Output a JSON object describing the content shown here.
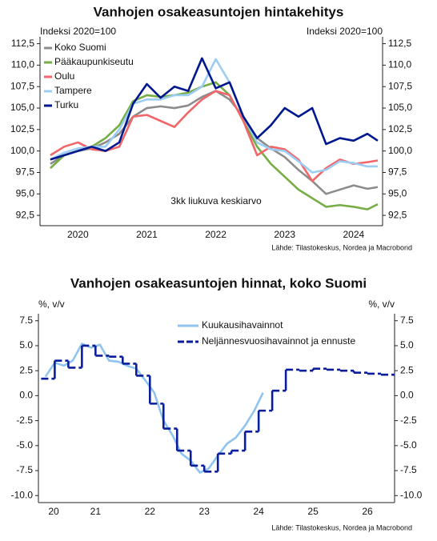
{
  "chart_data": [
    {
      "type": "line",
      "title": "Vanhojen osakeasuntojen hintakehitys",
      "y_label": "Indeksi 2020=100",
      "y2_label": "Indeksi 2020=100",
      "annotation": "3kk liukuva keskiarvo",
      "source": "Lähde: Tilastokeskus, Nordea ja Macrobond",
      "legend": "upper left",
      "x": [
        2020.1,
        2020.3,
        2020.5,
        2020.7,
        2020.9,
        2021.1,
        2021.3,
        2021.5,
        2021.7,
        2021.9,
        2022.1,
        2022.3,
        2022.5,
        2022.7,
        2022.9,
        2023.1,
        2023.3,
        2023.5,
        2023.7,
        2023.9,
        2024.1,
        2024.3,
        2024.5,
        2024.7,
        2024.85
      ],
      "xlim": [
        2019.95,
        2024.92
      ],
      "xticks": [
        {
          "value": 2020.5,
          "label": "2020"
        },
        {
          "value": 2021.5,
          "label": "2021"
        },
        {
          "value": 2022.5,
          "label": "2022"
        },
        {
          "value": 2023.5,
          "label": "2023"
        },
        {
          "value": 2024.5,
          "label": "2024"
        }
      ],
      "ylim": [
        91.3,
        113.3
      ],
      "yticks": [
        {
          "value": 92.5,
          "label": "92,5"
        },
        {
          "value": 95,
          "label": "95,0"
        },
        {
          "value": 97.5,
          "label": "97,5"
        },
        {
          "value": 100,
          "label": "100,0"
        },
        {
          "value": 102.5,
          "label": "102,5"
        },
        {
          "value": 105,
          "label": "105,0"
        },
        {
          "value": 107.5,
          "label": "107,5"
        },
        {
          "value": 110,
          "label": "110,0"
        },
        {
          "value": 112.5,
          "label": "112,5"
        }
      ],
      "series": [
        {
          "name": "Koko Suomi",
          "color": "#8c8c8c",
          "values": [
            98.5,
            99.5,
            100,
            100.3,
            101,
            102,
            104,
            105,
            105.2,
            105,
            105.3,
            106.3,
            107,
            106,
            104,
            101.5,
            100.3,
            99.3,
            97.8,
            96.5,
            95,
            95.5,
            96,
            95.6,
            95.8
          ]
        },
        {
          "name": "Pääkaupunkiseutu",
          "color": "#76ad45",
          "values": [
            98,
            99.5,
            100,
            100.5,
            101.5,
            103,
            105.8,
            106.5,
            106.3,
            106.5,
            106.8,
            107.5,
            108,
            106.5,
            103.5,
            100.5,
            98.5,
            97,
            95.5,
            94.5,
            93.5,
            93.7,
            93.5,
            93.2,
            93.8
          ]
        },
        {
          "name": "Oulu",
          "color": "#f2666a",
          "values": [
            99.5,
            100.5,
            101,
            100.2,
            100,
            100.5,
            104,
            104.2,
            103.5,
            102.8,
            104.5,
            106,
            107,
            106.5,
            103.5,
            99.5,
            100.5,
            100.2,
            99,
            96.5,
            98,
            99,
            98.5,
            98.7,
            98.9
          ]
        },
        {
          "name": "Tampere",
          "color": "#9ccdf4",
          "values": [
            99,
            99.8,
            100.3,
            100.5,
            100.5,
            102.5,
            105.5,
            106,
            106,
            106.5,
            106.5,
            107.5,
            110.7,
            108,
            104,
            101,
            100.2,
            100,
            98.8,
            97.5,
            97.8,
            98.8,
            98.6,
            98.2,
            98.2
          ]
        },
        {
          "name": "Turku",
          "color": "#00188f",
          "values": [
            99,
            99.5,
            100,
            100.5,
            100,
            101,
            105.5,
            107.8,
            106.2,
            107.5,
            107,
            110.8,
            107.3,
            108,
            104,
            101.5,
            103,
            105,
            104,
            105,
            100.8,
            101.5,
            101.2,
            102,
            101.2
          ]
        }
      ]
    },
    {
      "type": "line",
      "title": "Vanhojen osakeasuntojen hinnat, koko Suomi",
      "y_label": "%, v/v",
      "y2_label": "%, v/v",
      "source": "Lähde: Tilastokeskus, Nordea ja Macrobond",
      "legend": "upper center",
      "xlim": [
        2020.45,
        2027.0
      ],
      "xticks": [
        {
          "value": 2020.73,
          "label": "20"
        },
        {
          "value": 2021.5,
          "label": "21"
        },
        {
          "value": 2022.5,
          "label": "22"
        },
        {
          "value": 2023.5,
          "label": "23"
        },
        {
          "value": 2024.5,
          "label": "24"
        },
        {
          "value": 2025.5,
          "label": "25"
        },
        {
          "value": 2026.5,
          "label": "26"
        }
      ],
      "ylim": [
        -10.7,
        8.2
      ],
      "yticks": [
        {
          "value": -10,
          "label": "-10.0"
        },
        -7.5,
        {
          "value": -5,
          "label": "-5.0"
        },
        -2.5,
        {
          "value": 0,
          "label": "0.0"
        },
        2.5,
        {
          "value": 5,
          "label": "5.0"
        },
        7.5
      ],
      "series": [
        {
          "name": "Kuukausihavainnot",
          "color": "#8fc3f0",
          "x": [
            2020.58,
            2020.75,
            2020.92,
            2021.08,
            2021.25,
            2021.42,
            2021.58,
            2021.75,
            2021.92,
            2022.08,
            2022.25,
            2022.42,
            2022.58,
            2022.75,
            2022.92,
            2023.08,
            2023.25,
            2023.42,
            2023.58,
            2023.75,
            2023.92,
            2024.08,
            2024.25,
            2024.42,
            2024.58
          ],
          "values": [
            1.9,
            3.3,
            3.0,
            3.5,
            5.2,
            4.8,
            5.1,
            3.5,
            3.4,
            3.0,
            2.7,
            1.5,
            0.3,
            -2.5,
            -4.0,
            -5.8,
            -6.5,
            -7.7,
            -7.3,
            -6.0,
            -4.8,
            -4.2,
            -3.0,
            -1.5,
            0.3
          ]
        },
        {
          "name": "Neljännesvuosihavainnot ja ennuste",
          "color": "#0a1e9c",
          "step": true,
          "dashed": true,
          "x": [
            2020.5,
            2020.75,
            2021.0,
            2021.25,
            2021.5,
            2021.75,
            2022.0,
            2022.25,
            2022.5,
            2022.75,
            2023.0,
            2023.25,
            2023.5,
            2023.75,
            2024.0,
            2024.25,
            2024.5,
            2024.75,
            2025.0,
            2025.25,
            2025.5,
            2025.75,
            2026.0,
            2026.25,
            2026.5,
            2026.75
          ],
          "values": [
            1.7,
            3.5,
            2.8,
            5.0,
            4.0,
            3.9,
            3.2,
            2.0,
            -0.8,
            -3.3,
            -5.5,
            -7.0,
            -7.6,
            -5.8,
            -5.5,
            -3.6,
            -1.5,
            0.5,
            2.6,
            2.5,
            2.7,
            2.6,
            2.5,
            2.3,
            2.2,
            2.1
          ]
        }
      ]
    }
  ]
}
